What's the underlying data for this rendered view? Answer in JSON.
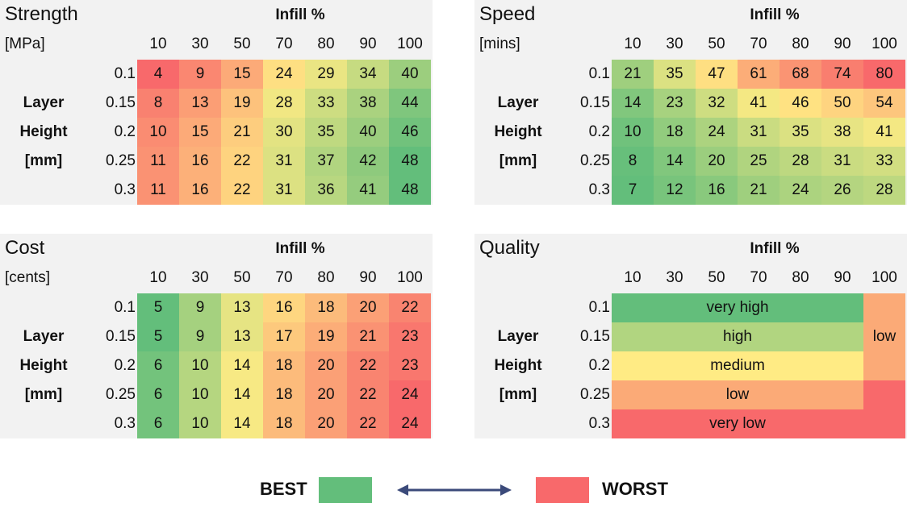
{
  "legend": {
    "best_label": "BEST",
    "worst_label": "WORST",
    "best_color": "#63be7b",
    "worst_color": "#f8696b"
  },
  "chart_data": [
    {
      "type": "heatmap",
      "title": "Strength",
      "unit": "[MPa]",
      "xlabel": "Infill %",
      "ylabel": [
        "Layer",
        "Height",
        "[mm]"
      ],
      "x": [
        "10",
        "30",
        "50",
        "70",
        "80",
        "90",
        "100"
      ],
      "y": [
        "0.1",
        "0.15",
        "0.2",
        "0.25",
        "0.3"
      ],
      "values": [
        [
          4,
          9,
          15,
          24,
          29,
          34,
          40
        ],
        [
          8,
          13,
          19,
          28,
          33,
          38,
          44
        ],
        [
          10,
          15,
          21,
          30,
          35,
          40,
          46
        ],
        [
          11,
          16,
          22,
          31,
          37,
          42,
          48
        ],
        [
          11,
          16,
          22,
          31,
          36,
          41,
          48
        ]
      ],
      "higher_is_better": true
    },
    {
      "type": "heatmap",
      "title": "Speed",
      "unit": "[mins]",
      "xlabel": "Infill %",
      "ylabel": [
        "Layer",
        "Height",
        "[mm]"
      ],
      "x": [
        "10",
        "30",
        "50",
        "70",
        "80",
        "90",
        "100"
      ],
      "y": [
        "0.1",
        "0.15",
        "0.2",
        "0.25",
        "0.3"
      ],
      "values": [
        [
          21,
          35,
          47,
          61,
          68,
          74,
          80
        ],
        [
          14,
          23,
          32,
          41,
          46,
          50,
          54
        ],
        [
          10,
          18,
          24,
          31,
          35,
          38,
          41
        ],
        [
          8,
          14,
          20,
          25,
          28,
          31,
          33
        ],
        [
          7,
          12,
          16,
          21,
          24,
          26,
          28
        ]
      ],
      "higher_is_better": false
    },
    {
      "type": "heatmap",
      "title": "Cost",
      "unit": "[cents]",
      "xlabel": "Infill %",
      "ylabel": [
        "Layer",
        "Height",
        "[mm]"
      ],
      "x": [
        "10",
        "30",
        "50",
        "70",
        "80",
        "90",
        "100"
      ],
      "y": [
        "0.1",
        "0.15",
        "0.2",
        "0.25",
        "0.3"
      ],
      "values": [
        [
          5,
          9,
          13,
          16,
          18,
          20,
          22
        ],
        [
          5,
          9,
          13,
          17,
          19,
          21,
          23
        ],
        [
          6,
          10,
          14,
          18,
          20,
          22,
          23
        ],
        [
          6,
          10,
          14,
          18,
          20,
          22,
          24
        ],
        [
          6,
          10,
          14,
          18,
          20,
          22,
          24
        ]
      ],
      "higher_is_better": false
    },
    {
      "type": "heatmap",
      "title": "Quality",
      "unit": "",
      "xlabel": "Infill %",
      "ylabel": [
        "Layer",
        "Height",
        "[mm]"
      ],
      "x": [
        "10",
        "30",
        "50",
        "70",
        "80",
        "90",
        "100"
      ],
      "y": [
        "0.1",
        "0.15",
        "0.2",
        "0.25",
        "0.3"
      ],
      "bands": [
        {
          "row": 0,
          "from_col": 0,
          "to_col": 5,
          "label": "very high",
          "color": "#63be7b"
        },
        {
          "row": 1,
          "from_col": 0,
          "to_col": 5,
          "label": "high",
          "color": "#b1d580"
        },
        {
          "row": 2,
          "from_col": 0,
          "to_col": 5,
          "label": "medium",
          "color": "#ffeb84"
        },
        {
          "row": 3,
          "from_col": 0,
          "to_col": 5,
          "label": "low",
          "color": "#fbaa77"
        },
        {
          "row": 4,
          "from_col": 0,
          "to_col": 5,
          "label": "very low",
          "color": "#f8696b"
        }
      ],
      "side_band": {
        "col": 6,
        "label": "low",
        "color": "#fbaa77",
        "rows_low": [
          0,
          1,
          2
        ],
        "rows_very_low": [
          3,
          4
        ],
        "very_low_color": "#f8696b"
      }
    }
  ]
}
